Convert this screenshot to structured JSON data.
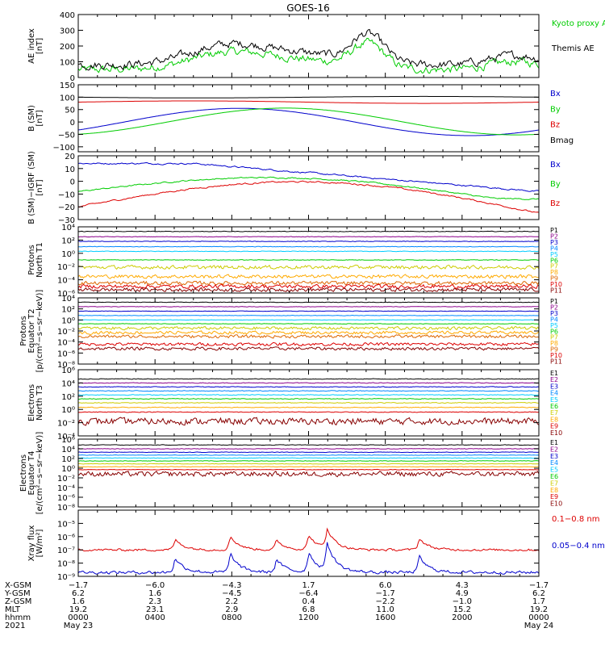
{
  "chart_data": {
    "type": "line",
    "title": "GOES-16",
    "panels": [
      {
        "ylabel": [
          "AE index",
          "[nT]"
        ],
        "ylim": [
          0,
          400
        ],
        "yticks": [
          0,
          100,
          200,
          300,
          400
        ],
        "yticklabels": [
          "0",
          "100",
          "200",
          "300",
          "400"
        ],
        "log": false,
        "series": [
          {
            "name": "Kyoto proxy AE",
            "color": "#00cc00"
          },
          {
            "name": "Themis AE",
            "color": "#000000"
          }
        ]
      },
      {
        "ylabel": [
          "B (SM)",
          "[nT]"
        ],
        "ylim": [
          -120,
          150
        ],
        "yticks": [
          -100,
          -50,
          0,
          50,
          100,
          150
        ],
        "yticklabels": [
          "−100",
          "−50",
          "0",
          "50",
          "100",
          "150"
        ],
        "log": false,
        "series": [
          {
            "name": "Bx",
            "color": "#0000cc"
          },
          {
            "name": "By",
            "color": "#00cc00"
          },
          {
            "name": "Bz",
            "color": "#dd0000"
          },
          {
            "name": "Bmag",
            "color": "#000000"
          }
        ]
      },
      {
        "ylabel": [
          "B (SM)−IGRF (SM)",
          "[nT]"
        ],
        "ylim": [
          -30,
          20
        ],
        "yticks": [
          -30,
          -20,
          -10,
          0,
          10,
          20
        ],
        "yticklabels": [
          "−30",
          "−20",
          "−10",
          "0",
          "10",
          "20"
        ],
        "log": false,
        "series": [
          {
            "name": "Bx",
            "color": "#0000cc"
          },
          {
            "name": "By",
            "color": "#00cc00"
          },
          {
            "name": "Bz",
            "color": "#dd0000"
          }
        ]
      },
      {
        "ylabel": [
          "Protons",
          "North T1"
        ],
        "ylim": [
          -6,
          4
        ],
        "yticks": [
          -6,
          -4,
          -2,
          0,
          2,
          4
        ],
        "yticklabels": [
          "10⁻⁶",
          "10⁻⁴",
          "10⁻²",
          "10⁰",
          "10²",
          "10⁴"
        ],
        "log": true,
        "series": [
          {
            "name": "P1",
            "color": "#000000"
          },
          {
            "name": "P2",
            "color": "#8b008b"
          },
          {
            "name": "P3",
            "color": "#0000cc"
          },
          {
            "name": "P4",
            "color": "#0088ff"
          },
          {
            "name": "P5",
            "color": "#00ccff"
          },
          {
            "name": "P6",
            "color": "#00cc00"
          },
          {
            "name": "P7",
            "color": "#cccc00"
          },
          {
            "name": "P8",
            "color": "#ffaa00"
          },
          {
            "name": "P9",
            "color": "#dd6600"
          },
          {
            "name": "P10",
            "color": "#dd0000"
          },
          {
            "name": "P11",
            "color": "#880000"
          }
        ]
      },
      {
        "ylabel": [
          "Protons",
          "Equator T2",
          "[p/(cm²−s−sr−keV)]"
        ],
        "ylim": [
          -8,
          4
        ],
        "yticks": [
          -8,
          -6,
          -4,
          -2,
          0,
          2,
          4
        ],
        "yticklabels": [
          "10⁻⁸",
          "10⁻⁶",
          "10⁻⁴",
          "10⁻²",
          "10⁰",
          "10²",
          "10⁴"
        ],
        "log": true,
        "series": [
          {
            "name": "P1",
            "color": "#000000"
          },
          {
            "name": "P2",
            "color": "#8b008b"
          },
          {
            "name": "P3",
            "color": "#0000cc"
          },
          {
            "name": "P4",
            "color": "#0088ff"
          },
          {
            "name": "P5",
            "color": "#00ccff"
          },
          {
            "name": "P6",
            "color": "#00cc00"
          },
          {
            "name": "P7",
            "color": "#cccc00"
          },
          {
            "name": "P8",
            "color": "#ffaa00"
          },
          {
            "name": "P9",
            "color": "#dd6600"
          },
          {
            "name": "P10",
            "color": "#dd0000"
          },
          {
            "name": "P11",
            "color": "#880000"
          }
        ]
      },
      {
        "ylabel": [
          "Electrons",
          "North T3"
        ],
        "ylim": [
          -4,
          6
        ],
        "yticks": [
          -4,
          -2,
          0,
          2,
          4,
          6
        ],
        "yticklabels": [
          "10⁻⁴",
          "10⁻²",
          "10⁰",
          "10²",
          "10⁴",
          "10⁶"
        ],
        "log": true,
        "series": [
          {
            "name": "E1",
            "color": "#000000"
          },
          {
            "name": "E2",
            "color": "#8b008b"
          },
          {
            "name": "E3",
            "color": "#0000cc"
          },
          {
            "name": "E4",
            "color": "#0088ff"
          },
          {
            "name": "E5",
            "color": "#00ccff"
          },
          {
            "name": "E6",
            "color": "#00cc00"
          },
          {
            "name": "E7",
            "color": "#cccc00"
          },
          {
            "name": "E8",
            "color": "#ffaa00"
          },
          {
            "name": "E9",
            "color": "#dd0000"
          },
          {
            "name": "E10",
            "color": "#880000"
          }
        ]
      },
      {
        "ylabel": [
          "Electrons",
          "Equator T4",
          "[e/(cm²−s−sr−keV)]"
        ],
        "ylim": [
          -8,
          6
        ],
        "yticks": [
          -8,
          -6,
          -4,
          -2,
          0,
          2,
          4,
          6
        ],
        "yticklabels": [
          "10⁻⁸",
          "10⁻⁶",
          "10⁻⁴",
          "10⁻²",
          "10⁰",
          "10²",
          "10⁴",
          "10⁶"
        ],
        "log": true,
        "series": [
          {
            "name": "E1",
            "color": "#000000"
          },
          {
            "name": "E2",
            "color": "#8b008b"
          },
          {
            "name": "E3",
            "color": "#0000cc"
          },
          {
            "name": "E4",
            "color": "#0088ff"
          },
          {
            "name": "E5",
            "color": "#00ccff"
          },
          {
            "name": "E6",
            "color": "#00cc00"
          },
          {
            "name": "E7",
            "color": "#cccc00"
          },
          {
            "name": "E8",
            "color": "#ffaa00"
          },
          {
            "name": "E9",
            "color": "#dd0000"
          },
          {
            "name": "E10",
            "color": "#880000"
          }
        ]
      },
      {
        "ylabel": [
          "Xray flux",
          "[W/m²]"
        ],
        "ylim": [
          -9,
          -4
        ],
        "yticks": [
          -9,
          -8,
          -7,
          -6,
          -5
        ],
        "yticklabels": [
          "10⁻⁹",
          "10⁻⁸",
          "10⁻⁷",
          "10⁻⁶",
          "10⁻⁵"
        ],
        "log": true,
        "series": [
          {
            "name": "0.1−0.8 nm",
            "color": "#dd0000"
          },
          {
            "name": "0.05−0.4 nm",
            "color": "#0000cc"
          }
        ]
      }
    ],
    "x_axis": {
      "rows": [
        {
          "label": "X-GSM",
          "values": [
            "−1.7",
            "−6.0",
            "−4.3",
            "1.7",
            "6.0",
            "4.3",
            "−1.7"
          ]
        },
        {
          "label": "Y-GSM",
          "values": [
            "6.2",
            "1.6",
            "−4.5",
            "−6.4",
            "−1.7",
            "4.9",
            "6.2"
          ]
        },
        {
          "label": "Z-GSM",
          "values": [
            "1.6",
            "2.3",
            "2.2",
            "0.4",
            "−2.2",
            "−1.0",
            "1.7"
          ]
        },
        {
          "label": "MLT",
          "values": [
            "19.2",
            "23.1",
            "2.9",
            "6.8",
            "11.0",
            "15.2",
            "19.2"
          ]
        },
        {
          "label": "hhmm",
          "values": [
            "0000",
            "0400",
            "0800",
            "1200",
            "1600",
            "2000",
            "0000"
          ]
        },
        {
          "label": "2021",
          "values": [
            "May 23",
            "",
            "",
            "",
            "",
            "",
            "May 24"
          ]
        }
      ]
    }
  }
}
